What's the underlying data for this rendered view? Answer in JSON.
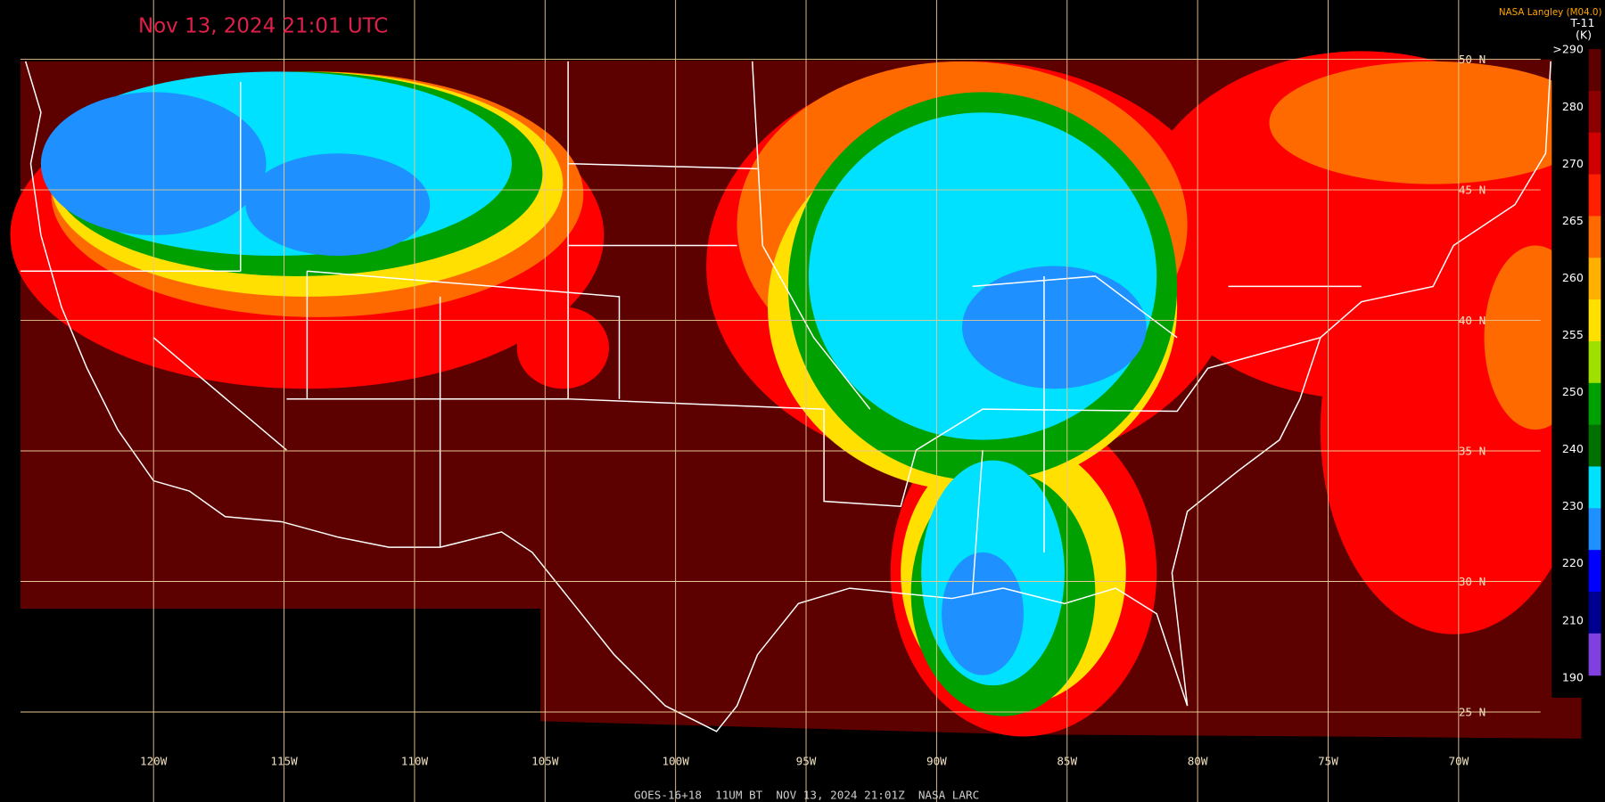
{
  "header": {
    "title": "Nov 13, 2024 21:01 UTC",
    "credit": "NASA Langley (M04.0)"
  },
  "legend": {
    "title": "T-11",
    "unit": "(K)",
    "labels": [
      ">290",
      "280",
      "270",
      "265",
      "260",
      "255",
      "250",
      "240",
      "230",
      "220",
      "210",
      "190"
    ]
  },
  "grid": {
    "longitudes": [
      "120W",
      "115W",
      "110W",
      "105W",
      "100W",
      "95W",
      "90W",
      "85W",
      "80W",
      "75W",
      "70W"
    ],
    "latitudes": [
      "50 N",
      "45 N",
      "40 N",
      "35 N",
      "30 N",
      "25 N"
    ]
  },
  "footer": "GOES-16+18  11UM BT  NOV 13, 2024 21:01Z  NASA LARC"
}
